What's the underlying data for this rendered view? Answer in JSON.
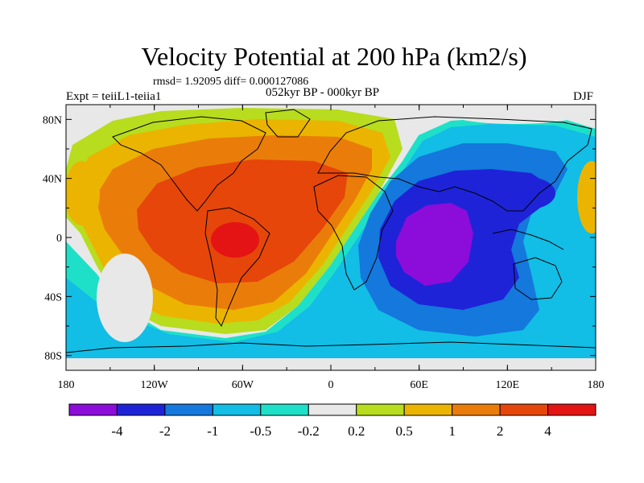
{
  "title": "Velocity Potential at 200 hPa (km2/s)",
  "stats": "rmsd= 1.92095 diff= 0.000127086",
  "left_label": "Expt = teiiL1-teiia1",
  "center_label": "052kyr BP - 000kyr BP",
  "right_label": "DJF",
  "map": {
    "projection": "cylindrical equidistant",
    "lon_range": [
      -180,
      180
    ],
    "lat_range": [
      -90,
      90
    ],
    "lon_ticks": [
      "180",
      "120W",
      "60W",
      "0",
      "60E",
      "120E",
      "180"
    ],
    "lat_ticks": [
      "80N",
      "40N",
      "0",
      "40S",
      "80S"
    ],
    "coastlines": true
  },
  "colorbar": {
    "labels": [
      "-4",
      "-2",
      "-1",
      "-0.5",
      "-0.2",
      "0.2",
      "0.5",
      "1",
      "2",
      "4"
    ],
    "colors": [
      "#8c0cd9",
      "#1e23d8",
      "#1478dc",
      "#12bde6",
      "#1ee0c8",
      "#e8e8e8",
      "#b8dc1e",
      "#ebb400",
      "#ea7d0a",
      "#e6460a",
      "#e41414"
    ]
  },
  "colors": {
    "background": "#e8e8e8",
    "low": "#8c0cd9",
    "high": "#e41414"
  }
}
